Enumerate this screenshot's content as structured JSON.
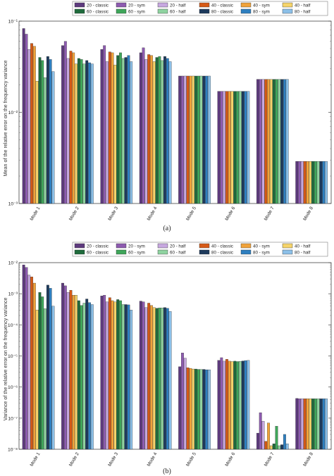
{
  "legend": {
    "entries": [
      {
        "label": "20 - classic",
        "color": "#5e3a7e"
      },
      {
        "label": "20 - sym",
        "color": "#8d5bb0"
      },
      {
        "label": "20 - half",
        "color": "#c7a8e0"
      },
      {
        "label": "40 - classic",
        "color": "#d65a16"
      },
      {
        "label": "40 - sym",
        "color": "#f0a23a"
      },
      {
        "label": "40 - half",
        "color": "#f6d46a"
      },
      {
        "label": "60 - classic",
        "color": "#1f6b3c"
      },
      {
        "label": "60 - sym",
        "color": "#3fa65a"
      },
      {
        "label": "60 - half",
        "color": "#8fd3a0"
      },
      {
        "label": "80 - classic",
        "color": "#1d3a5c"
      },
      {
        "label": "80 - sym",
        "color": "#2e7fc0"
      },
      {
        "label": "80 - half",
        "color": "#8cc0e8"
      }
    ]
  },
  "chart_data": [
    {
      "type": "bar",
      "caption": "(a)",
      "ylabel": "Mean of the relative error on the frequency variance",
      "yscale": "log",
      "ylim": [
        0.001,
        0.1
      ],
      "yticks": [
        "10⁻³",
        "10⁻²",
        "10⁻¹"
      ],
      "grid": false,
      "legend_position": "top",
      "categories": [
        "Mode 1",
        "Mode 2",
        "Mode 3",
        "Mode 4",
        "Mode 5",
        "Mode 6",
        "Mode 7",
        "Mode 8"
      ],
      "series": [
        {
          "name": "20 - classic",
          "values": [
            0.083,
            0.054,
            0.049,
            0.045,
            0.025,
            0.017,
            0.023,
            0.0029
          ]
        },
        {
          "name": "20 - sym",
          "values": [
            0.072,
            0.06,
            0.054,
            0.051,
            0.025,
            0.017,
            0.023,
            0.0029
          ]
        },
        {
          "name": "20 - half",
          "values": [
            0.049,
            0.039,
            0.036,
            0.038,
            0.025,
            0.017,
            0.023,
            0.0029
          ]
        },
        {
          "name": "40 - classic",
          "values": [
            0.057,
            0.047,
            0.046,
            0.043,
            0.025,
            0.017,
            0.023,
            0.0029
          ]
        },
        {
          "name": "40 - sym",
          "values": [
            0.053,
            0.045,
            0.045,
            0.042,
            0.025,
            0.017,
            0.023,
            0.0029
          ]
        },
        {
          "name": "40 - half",
          "values": [
            0.022,
            0.034,
            0.033,
            0.036,
            0.025,
            0.017,
            0.023,
            0.0029
          ]
        },
        {
          "name": "60 - classic",
          "values": [
            0.04,
            0.039,
            0.042,
            0.04,
            0.025,
            0.017,
            0.023,
            0.0029
          ]
        },
        {
          "name": "60 - sym",
          "values": [
            0.037,
            0.038,
            0.045,
            0.041,
            0.025,
            0.017,
            0.023,
            0.0029
          ]
        },
        {
          "name": "60 - half",
          "values": [
            0.024,
            0.034,
            0.039,
            0.037,
            0.025,
            0.017,
            0.023,
            0.0029
          ]
        },
        {
          "name": "80 - classic",
          "values": [
            0.041,
            0.037,
            0.04,
            0.041,
            0.025,
            0.017,
            0.023,
            0.0029
          ]
        },
        {
          "name": "80 - sym",
          "values": [
            0.038,
            0.035,
            0.042,
            0.039,
            0.025,
            0.017,
            0.023,
            0.0029
          ]
        },
        {
          "name": "80 - half",
          "values": [
            0.028,
            0.034,
            0.036,
            0.036,
            0.025,
            0.017,
            0.023,
            0.0029
          ]
        }
      ]
    },
    {
      "type": "bar",
      "caption": "(b)",
      "ylabel": "Variance of the relative error on the frequency variance",
      "yscale": "log",
      "ylim": [
        1e-08,
        0.01
      ],
      "yticks": [
        "10⁻⁸",
        "10⁻⁷",
        "10⁻⁶",
        "10⁻⁵",
        "10⁻⁴",
        "10⁻³",
        "10⁻²"
      ],
      "grid": false,
      "legend_position": "top",
      "categories": [
        "Mode 1",
        "Mode 2",
        "Mode 3",
        "Mode 4",
        "Mode 5",
        "Mode 6",
        "Mode 7",
        "Mode 8"
      ],
      "series": [
        {
          "name": "20 - classic",
          "values": [
            0.0085,
            0.0022,
            0.00085,
            0.00058,
            4.5e-06,
            7.2e-06,
            3.3e-08,
            4.3e-07
          ]
        },
        {
          "name": "20 - sym",
          "values": [
            0.007,
            0.0018,
            0.0009,
            0.00055,
            1.25e-05,
            8.8e-06,
            1.5e-07,
            4.2e-07
          ]
        },
        {
          "name": "20 - half",
          "values": [
            0.004,
            0.0011,
            0.00055,
            0.00036,
            8.5e-06,
            6.8e-06,
            8e-08,
            4.2e-07
          ]
        },
        {
          "name": "40 - classic",
          "values": [
            0.0035,
            0.0013,
            0.00075,
            0.0005,
            4.2e-06,
            7.8e-06,
            1.8e-08,
            4.2e-07
          ]
        },
        {
          "name": "40 - sym",
          "values": [
            0.0022,
            0.0009,
            0.0006,
            0.00042,
            4e-06,
            6.8e-06,
            7e-08,
            4.2e-07
          ]
        },
        {
          "name": "40 - half",
          "values": [
            0.0003,
            0.0009,
            0.00055,
            0.00036,
            3.8e-06,
            6.6e-06,
            1.3e-08,
            4.2e-07
          ]
        },
        {
          "name": "60 - classic",
          "values": [
            0.0011,
            0.0006,
            0.00065,
            0.00034,
            3.8e-06,
            6.8e-06,
            1.5e-08,
            4.2e-07
          ]
        },
        {
          "name": "60 - sym",
          "values": [
            0.0008,
            0.00042,
            0.0006,
            0.00035,
            3.7e-06,
            6.6e-06,
            5.5e-08,
            4.2e-07
          ]
        },
        {
          "name": "60 - half",
          "values": [
            0.00033,
            0.0005,
            0.00045,
            0.00035,
            3.7e-06,
            6.7e-06,
            1.3e-08,
            4.2e-07
          ]
        },
        {
          "name": "80 - classic",
          "values": [
            0.0019,
            0.00068,
            0.00045,
            0.00036,
            3.7e-06,
            6.9e-06,
            1.4e-08,
            4.2e-07
          ]
        },
        {
          "name": "80 - sym",
          "values": [
            0.0015,
            0.00052,
            0.00044,
            0.00034,
            3.6e-06,
            7.1e-06,
            3e-08,
            4.2e-07
          ]
        },
        {
          "name": "80 - half",
          "values": [
            0.0004,
            0.00045,
            0.0003,
            0.00027,
            3.6e-06,
            7.2e-06,
            1.5e-08,
            4.2e-07
          ]
        }
      ]
    }
  ]
}
